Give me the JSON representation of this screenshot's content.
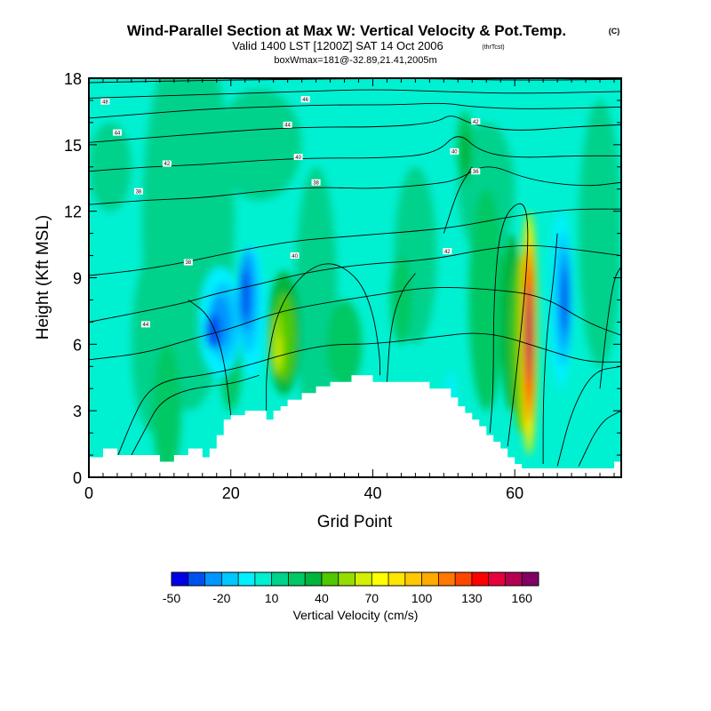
{
  "chart_data": {
    "type": "heatmap",
    "title": "Wind-Parallel Section at Max W: Vertical Velocity & Pot.Temp.",
    "title_suffix": "(C)",
    "subtitle": "Valid 1400 LST [1200Z] SAT 14 Oct 2006",
    "subtitle_suffix": "(thrTcst)",
    "subtitle2": "boxWmax=181@-32.89,21.41,2005m",
    "xlabel": "Grid Point",
    "ylabel": "Height (Kft MSL)",
    "xlim": [
      0,
      75
    ],
    "ylim": [
      0,
      18
    ],
    "xticks": [
      "0",
      "20",
      "40",
      "60"
    ],
    "yticks": [
      "0",
      "3",
      "6",
      "9",
      "12",
      "15",
      "18"
    ],
    "colorbar": {
      "label": "Vertical Velocity (cm/s)",
      "tick_labels": [
        "-50",
        "-20",
        "10",
        "40",
        "70",
        "100",
        "130",
        "160"
      ],
      "levels": [
        -50,
        -40,
        -30,
        -20,
        -10,
        0,
        10,
        20,
        30,
        40,
        50,
        60,
        70,
        80,
        90,
        100,
        110,
        120,
        130,
        140,
        150,
        160,
        170
      ],
      "colors": [
        "#0000e6",
        "#0050f0",
        "#0096ff",
        "#00c8ff",
        "#00f0ff",
        "#00f0d2",
        "#00d28c",
        "#00c864",
        "#00b43c",
        "#50c800",
        "#96dc00",
        "#d2f000",
        "#ffff00",
        "#ffe600",
        "#ffc800",
        "#ffaa00",
        "#ff7800",
        "#ff4600",
        "#ff0000",
        "#e6003c",
        "#b40050",
        "#820064"
      ]
    },
    "potential_temperature_contour_labels": [
      "48",
      "46",
      "44",
      "44",
      "42",
      "42",
      "40",
      "40",
      "38",
      "38",
      "36",
      "38",
      "40",
      "42",
      "44"
    ],
    "velocity_maximum": 181,
    "terrain": [
      [
        0,
        0.9
      ],
      [
        2,
        0.9
      ],
      [
        2,
        1.3
      ],
      [
        4,
        1.3
      ],
      [
        4,
        1.0
      ],
      [
        10,
        1.0
      ],
      [
        10,
        0.7
      ],
      [
        12,
        0.7
      ],
      [
        12,
        1.0
      ],
      [
        14,
        1.0
      ],
      [
        14,
        1.3
      ],
      [
        16,
        1.3
      ],
      [
        16,
        0.9
      ],
      [
        17,
        0.9
      ],
      [
        17,
        1.3
      ],
      [
        18,
        1.3
      ],
      [
        18,
        1.9
      ],
      [
        19,
        1.9
      ],
      [
        19,
        2.6
      ],
      [
        20,
        2.6
      ],
      [
        20,
        2.8
      ],
      [
        22,
        2.8
      ],
      [
        22,
        3.0
      ],
      [
        25,
        3.0
      ],
      [
        25,
        2.6
      ],
      [
        26,
        2.6
      ],
      [
        26,
        3.0
      ],
      [
        27,
        3.0
      ],
      [
        27,
        3.2
      ],
      [
        28,
        3.2
      ],
      [
        28,
        3.5
      ],
      [
        30,
        3.5
      ],
      [
        30,
        3.8
      ],
      [
        32,
        3.8
      ],
      [
        32,
        4.1
      ],
      [
        34,
        4.1
      ],
      [
        34,
        4.3
      ],
      [
        37,
        4.3
      ],
      [
        37,
        4.6
      ],
      [
        40,
        4.6
      ],
      [
        40,
        4.3
      ],
      [
        48,
        4.3
      ],
      [
        48,
        4.0
      ],
      [
        51,
        4.0
      ],
      [
        51,
        3.6
      ],
      [
        52,
        3.6
      ],
      [
        52,
        3.2
      ],
      [
        53,
        3.2
      ],
      [
        53,
        2.9
      ],
      [
        54,
        2.9
      ],
      [
        54,
        2.6
      ],
      [
        55,
        2.6
      ],
      [
        55,
        2.3
      ],
      [
        56,
        2.3
      ],
      [
        56,
        1.9
      ],
      [
        57,
        1.9
      ],
      [
        57,
        1.6
      ],
      [
        58,
        1.6
      ],
      [
        58,
        1.3
      ],
      [
        59,
        1.3
      ],
      [
        59,
        0.9
      ],
      [
        60,
        0.9
      ],
      [
        60,
        0.6
      ],
      [
        61,
        0.6
      ],
      [
        61,
        0.4
      ],
      [
        74,
        0.4
      ],
      [
        74,
        0.7
      ],
      [
        75,
        0.7
      ]
    ]
  }
}
